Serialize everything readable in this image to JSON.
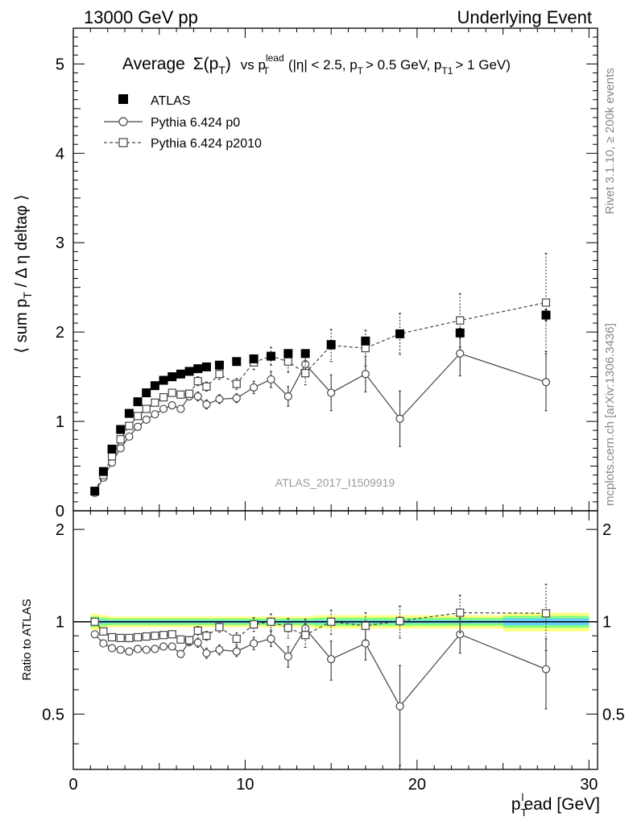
{
  "header": {
    "left": "13000 GeV pp",
    "right": "Underlying Event"
  },
  "plot_title": {
    "main": "Average",
    "sigma_pt": "Σ(p",
    "sigma_pt_sub": "T",
    "sigma_pt_close": ")",
    "vs": "vs p",
    "vs_sup": "lead",
    "vs_sub": "T",
    "cuts": "(|η| < 2.5, p",
    "cuts_sub1": "T",
    "cuts_mid": "> 0.5 GeV, p",
    "cuts_sub2": "T1",
    "cuts_end": "> 1 GeV)"
  },
  "side_labels": {
    "rivet": "Rivet 3.1.10, ≥ 200k events",
    "mcplots": "mcplots.cern.ch [arXiv:1306.3436]"
  },
  "watermark": "ATLAS_2017_I1509919",
  "axes": {
    "top_ylabel": "⟨ sum p",
    "top_ylabel_sub": "T",
    "top_ylabel_rest": " / Δ η deltaφ ⟩",
    "bottom_ylabel": "Ratio to ATLAS",
    "xlabel": "p",
    "xlabel_sub": "T",
    "xlabel_sup": "l",
    "xlabel_rest": "ead [GeV]"
  },
  "colors": {
    "data": "#000000",
    "mc": "#444444",
    "band_outer": "#ffff80",
    "band_inner": "#80ff80",
    "band_core": "#66ccff"
  },
  "chart_data": [
    {
      "type": "scatter",
      "panel": "main",
      "xlim": [
        0,
        30.5
      ],
      "ylim": [
        0,
        5.4
      ],
      "xticks": [
        0,
        10,
        20,
        30
      ],
      "yticks": [
        0,
        1,
        2,
        3,
        4,
        5
      ],
      "x": [
        1.25,
        1.75,
        2.25,
        2.75,
        3.25,
        3.75,
        4.25,
        4.75,
        5.25,
        5.75,
        6.25,
        6.75,
        7.25,
        7.75,
        8.5,
        9.5,
        10.5,
        11.5,
        12.5,
        13.5,
        15,
        17,
        19,
        22.5,
        27.5
      ],
      "series": [
        {
          "name": "ATLAS",
          "marker": "filled-square",
          "values": [
            0.22,
            0.44,
            0.69,
            0.91,
            1.09,
            1.22,
            1.32,
            1.4,
            1.46,
            1.5,
            1.53,
            1.56,
            1.59,
            1.61,
            1.63,
            1.67,
            1.7,
            1.73,
            1.76,
            1.76,
            1.86,
            1.9,
            1.98,
            1.99,
            2.19
          ],
          "errors": [
            0.01,
            0.01,
            0.02,
            0.02,
            0.02,
            0.02,
            0.02,
            0.02,
            0.02,
            0.02,
            0.02,
            0.02,
            0.02,
            0.02,
            0.02,
            0.02,
            0.02,
            0.03,
            0.03,
            0.03,
            0.03,
            0.04,
            0.04,
            0.05,
            0.06
          ]
        },
        {
          "name": "Pythia 6.424 p0",
          "marker": "open-circle",
          "line": "solid",
          "values": [
            0.2,
            0.37,
            0.54,
            0.7,
            0.83,
            0.94,
            1.02,
            1.08,
            1.14,
            1.18,
            1.14,
            1.28,
            1.28,
            1.19,
            1.25,
            1.26,
            1.38,
            1.47,
            1.28,
            1.64,
            1.32,
            1.53,
            1.03,
            1.76,
            1.44
          ],
          "errors": [
            0.01,
            0.01,
            0.01,
            0.01,
            0.02,
            0.02,
            0.02,
            0.02,
            0.02,
            0.02,
            0.03,
            0.04,
            0.05,
            0.05,
            0.05,
            0.05,
            0.07,
            0.09,
            0.11,
            0.12,
            0.2,
            0.2,
            0.31,
            0.25,
            0.32
          ]
        },
        {
          "name": "Pythia 6.424 p2010",
          "marker": "open-square",
          "line": "dashed",
          "values": [
            0.22,
            0.4,
            0.61,
            0.8,
            0.95,
            1.06,
            1.14,
            1.21,
            1.27,
            1.32,
            1.3,
            1.31,
            1.45,
            1.39,
            1.53,
            1.42,
            1.66,
            1.73,
            1.67,
            1.54,
            1.85,
            1.82,
            1.98,
            2.13,
            2.33
          ],
          "errors": [
            0.01,
            0.01,
            0.01,
            0.02,
            0.02,
            0.02,
            0.02,
            0.02,
            0.02,
            0.03,
            0.03,
            0.04,
            0.05,
            0.05,
            0.06,
            0.06,
            0.08,
            0.1,
            0.12,
            0.13,
            0.18,
            0.2,
            0.23,
            0.3,
            0.55
          ]
        }
      ]
    },
    {
      "type": "scatter",
      "panel": "ratio",
      "xlim": [
        0,
        30.5
      ],
      "ylim": [
        0.33,
        2.3
      ],
      "xticks": [
        0,
        10,
        20,
        30
      ],
      "yticks": [
        0.5,
        1,
        2
      ],
      "ylabel": "Ratio to ATLAS",
      "x": [
        1.25,
        1.75,
        2.25,
        2.75,
        3.25,
        3.75,
        4.25,
        4.75,
        5.25,
        5.75,
        6.25,
        6.75,
        7.25,
        7.75,
        8.5,
        9.5,
        10.5,
        11.5,
        12.5,
        13.5,
        15,
        17,
        19,
        22.5,
        27.5
      ],
      "band": {
        "bin_edges": [
          1,
          1.5,
          2,
          2.5,
          3,
          3.5,
          4,
          4.5,
          5,
          5.5,
          6,
          6.5,
          7,
          7.5,
          8,
          9,
          10,
          11,
          12,
          13,
          14,
          16,
          18,
          20,
          25,
          30
        ],
        "outer": [
          0.06,
          0.05,
          0.04,
          0.04,
          0.04,
          0.04,
          0.04,
          0.04,
          0.04,
          0.04,
          0.04,
          0.04,
          0.04,
          0.04,
          0.04,
          0.04,
          0.04,
          0.04,
          0.04,
          0.04,
          0.05,
          0.05,
          0.05,
          0.05,
          0.07
        ],
        "inner": [
          0.04,
          0.03,
          0.025,
          0.025,
          0.025,
          0.025,
          0.025,
          0.025,
          0.025,
          0.025,
          0.025,
          0.025,
          0.025,
          0.025,
          0.025,
          0.025,
          0.025,
          0.025,
          0.025,
          0.025,
          0.03,
          0.03,
          0.03,
          0.03,
          0.045
        ],
        "core": [
          0.015,
          0.012,
          0.01,
          0.01,
          0.01,
          0.01,
          0.01,
          0.01,
          0.01,
          0.01,
          0.01,
          0.01,
          0.01,
          0.01,
          0.01,
          0.01,
          0.01,
          0.01,
          0.01,
          0.01,
          0.012,
          0.012,
          0.012,
          0.012,
          0.025
        ]
      },
      "series": [
        {
          "name": "Pythia 6.424 p0",
          "marker": "open-circle",
          "line": "solid",
          "values": [
            0.91,
            0.85,
            0.82,
            0.81,
            0.8,
            0.815,
            0.81,
            0.815,
            0.83,
            0.83,
            0.785,
            0.86,
            0.855,
            0.79,
            0.81,
            0.8,
            0.85,
            0.88,
            0.77,
            0.95,
            0.755,
            0.85,
            0.53,
            0.91,
            0.7
          ],
          "errors": [
            0.01,
            0.01,
            0.01,
            0.01,
            0.01,
            0.01,
            0.01,
            0.01,
            0.01,
            0.015,
            0.02,
            0.025,
            0.03,
            0.03,
            0.03,
            0.03,
            0.04,
            0.05,
            0.06,
            0.07,
            0.11,
            0.1,
            0.19,
            0.12,
            0.18
          ]
        },
        {
          "name": "Pythia 6.424 p2010",
          "marker": "open-square",
          "line": "dashed",
          "values": [
            1.0,
            0.93,
            0.89,
            0.885,
            0.885,
            0.89,
            0.895,
            0.9,
            0.905,
            0.91,
            0.875,
            0.87,
            0.935,
            0.9,
            0.96,
            0.88,
            0.98,
            1.0,
            0.955,
            0.905,
            1.0,
            0.97,
            1.005,
            1.07,
            1.065
          ],
          "errors": [
            0.01,
            0.01,
            0.01,
            0.01,
            0.01,
            0.01,
            0.01,
            0.01,
            0.015,
            0.015,
            0.02,
            0.025,
            0.03,
            0.03,
            0.035,
            0.04,
            0.05,
            0.06,
            0.07,
            0.08,
            0.09,
            0.1,
            0.12,
            0.15,
            0.26
          ]
        }
      ]
    }
  ]
}
